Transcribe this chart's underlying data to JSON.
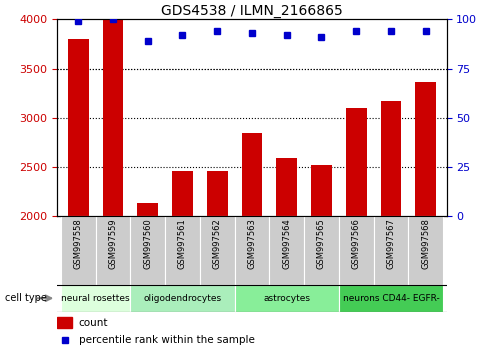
{
  "title": "GDS4538 / ILMN_2166865",
  "samples": [
    "GSM997558",
    "GSM997559",
    "GSM997560",
    "GSM997561",
    "GSM997562",
    "GSM997563",
    "GSM997564",
    "GSM997565",
    "GSM997566",
    "GSM997567",
    "GSM997568"
  ],
  "counts": [
    3800,
    4000,
    2130,
    2460,
    2460,
    2840,
    2590,
    2520,
    3100,
    3170,
    3360
  ],
  "percentile_ranks": [
    99,
    100,
    89,
    92,
    94,
    93,
    92,
    91,
    94,
    94,
    94
  ],
  "ylim_left": [
    2000,
    4000
  ],
  "ylim_right": [
    0,
    100
  ],
  "yticks_left": [
    2000,
    2500,
    3000,
    3500,
    4000
  ],
  "yticks_right": [
    0,
    25,
    50,
    75,
    100
  ],
  "bar_color": "#cc0000",
  "dot_color": "#0000cc",
  "cell_types": [
    {
      "label": "neural rosettes",
      "start": 0,
      "end": 2,
      "color": "#ddffdd"
    },
    {
      "label": "oligodendrocytes",
      "start": 2,
      "end": 5,
      "color": "#aaeebb"
    },
    {
      "label": "astrocytes",
      "start": 5,
      "end": 8,
      "color": "#88ee99"
    },
    {
      "label": "neurons CD44- EGFR-",
      "start": 8,
      "end": 11,
      "color": "#44cc55"
    }
  ],
  "tick_label_color_left": "#cc0000",
  "tick_label_color_right": "#0000cc",
  "background_color": "#ffffff",
  "plot_bg_color": "#ffffff",
  "xlabels_bg_color": "#cccccc",
  "legend_count_color": "#cc0000",
  "legend_pct_color": "#0000cc"
}
